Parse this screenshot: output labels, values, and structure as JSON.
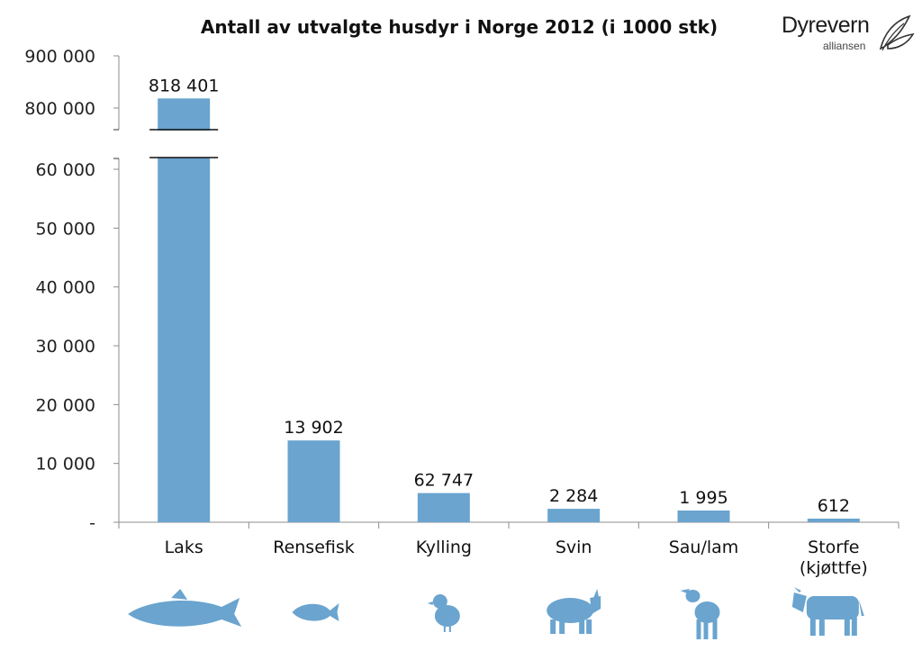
{
  "logo": {
    "name": "Dyrevern",
    "sub": "alliansen"
  },
  "chart_data": {
    "type": "bar",
    "title": "Antall av utvalgte husdyr i Norge 2012 (i 1000 stk)",
    "categories": [
      "Laks",
      "Rensefisk",
      "Kylling",
      "Svin",
      "Sau/lam",
      "Storfe\n(kjøttfe)"
    ],
    "values": [
      818401,
      13902,
      62747,
      2284,
      1995,
      612
    ],
    "data_labels": [
      "818 401",
      "13 902",
      "62 747",
      "2 284",
      "1 995",
      "612"
    ],
    "ylim_lower": [
      0,
      60000
    ],
    "ylim_upper": [
      800000,
      900000
    ],
    "y_ticks_lower": [
      "-",
      "10 000",
      "20 000",
      "30 000",
      "40 000",
      "50 000",
      "60 000"
    ],
    "y_ticks_upper": [
      "800 000",
      "900 000"
    ],
    "axis_break": true,
    "bar_color": "#6aa4cf",
    "icons": [
      "salmon-icon",
      "cleaner-fish-icon",
      "chick-icon",
      "pig-icon",
      "lamb-icon",
      "cow-icon"
    ],
    "grid": false,
    "xlabel": "",
    "ylabel": ""
  }
}
